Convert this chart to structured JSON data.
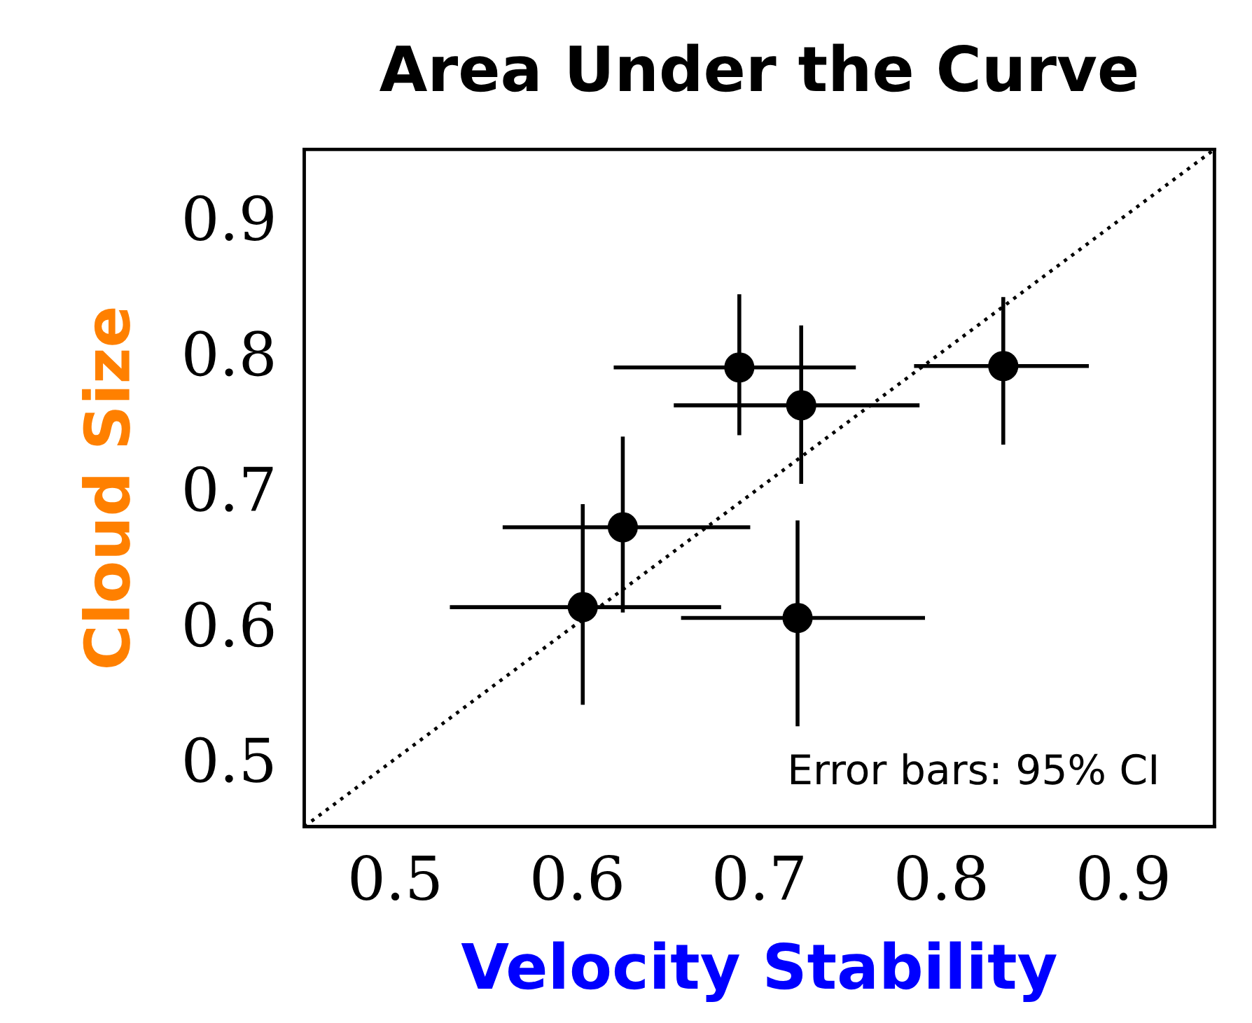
{
  "chart_data": {
    "type": "scatter",
    "title": "Area Under the Curve",
    "xlabel": "Velocity Stability",
    "ylabel": "Cloud Size",
    "xlim": [
      0.45,
      0.95
    ],
    "ylim": [
      0.45,
      0.95
    ],
    "xticks": [
      0.5,
      0.6,
      0.7,
      0.8,
      0.9
    ],
    "yticks": [
      0.5,
      0.6,
      0.7,
      0.8,
      0.9
    ],
    "grid": false,
    "legend": false,
    "annotations": [
      "Error bars: 95% CI"
    ],
    "series": [
      {
        "type": "line",
        "color": "#000000",
        "line_style": "dotted",
        "x": [
          0.45,
          0.95
        ],
        "values": [
          0.45,
          0.95
        ]
      },
      {
        "color": "#000000",
        "marker": "circle",
        "x": [
          0.689,
          0.723,
          0.834,
          0.625,
          0.603,
          0.721
        ],
        "values": [
          0.789,
          0.761,
          0.79,
          0.671,
          0.612,
          0.604
        ],
        "errors": [
          [
            0.739,
            0.843
          ],
          [
            0.703,
            0.82
          ],
          [
            0.732,
            0.841
          ],
          [
            0.608,
            0.738
          ],
          [
            0.54,
            0.688
          ],
          [
            0.524,
            0.676
          ]
        ],
        "xerrors": [
          [
            0.62,
            0.753
          ],
          [
            0.653,
            0.788
          ],
          [
            0.785,
            0.881
          ],
          [
            0.559,
            0.695
          ],
          [
            0.53,
            0.679
          ],
          [
            0.657,
            0.791
          ]
        ]
      }
    ]
  }
}
